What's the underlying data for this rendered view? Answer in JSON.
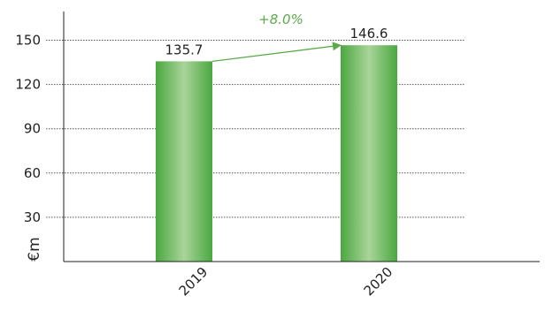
{
  "chart_data": {
    "type": "bar",
    "categories": [
      "2019",
      "2020"
    ],
    "values": [
      135.7,
      146.6
    ],
    "value_labels": [
      "135.7",
      "146.6"
    ],
    "title": "",
    "xlabel": "",
    "ylabel": "€m",
    "ylim": [
      0,
      160
    ],
    "yticks": [
      30,
      60,
      90,
      120,
      150
    ],
    "grid": true,
    "legend": "none",
    "annotation": {
      "text": "+8.0%",
      "from": "2019",
      "to": "2020"
    },
    "colors": {
      "bar_edge": "#4aa83f",
      "bar_center": "#a9d49a",
      "grid": "#555555",
      "axis": "#222222",
      "annotation": "#5aaa4a"
    }
  }
}
